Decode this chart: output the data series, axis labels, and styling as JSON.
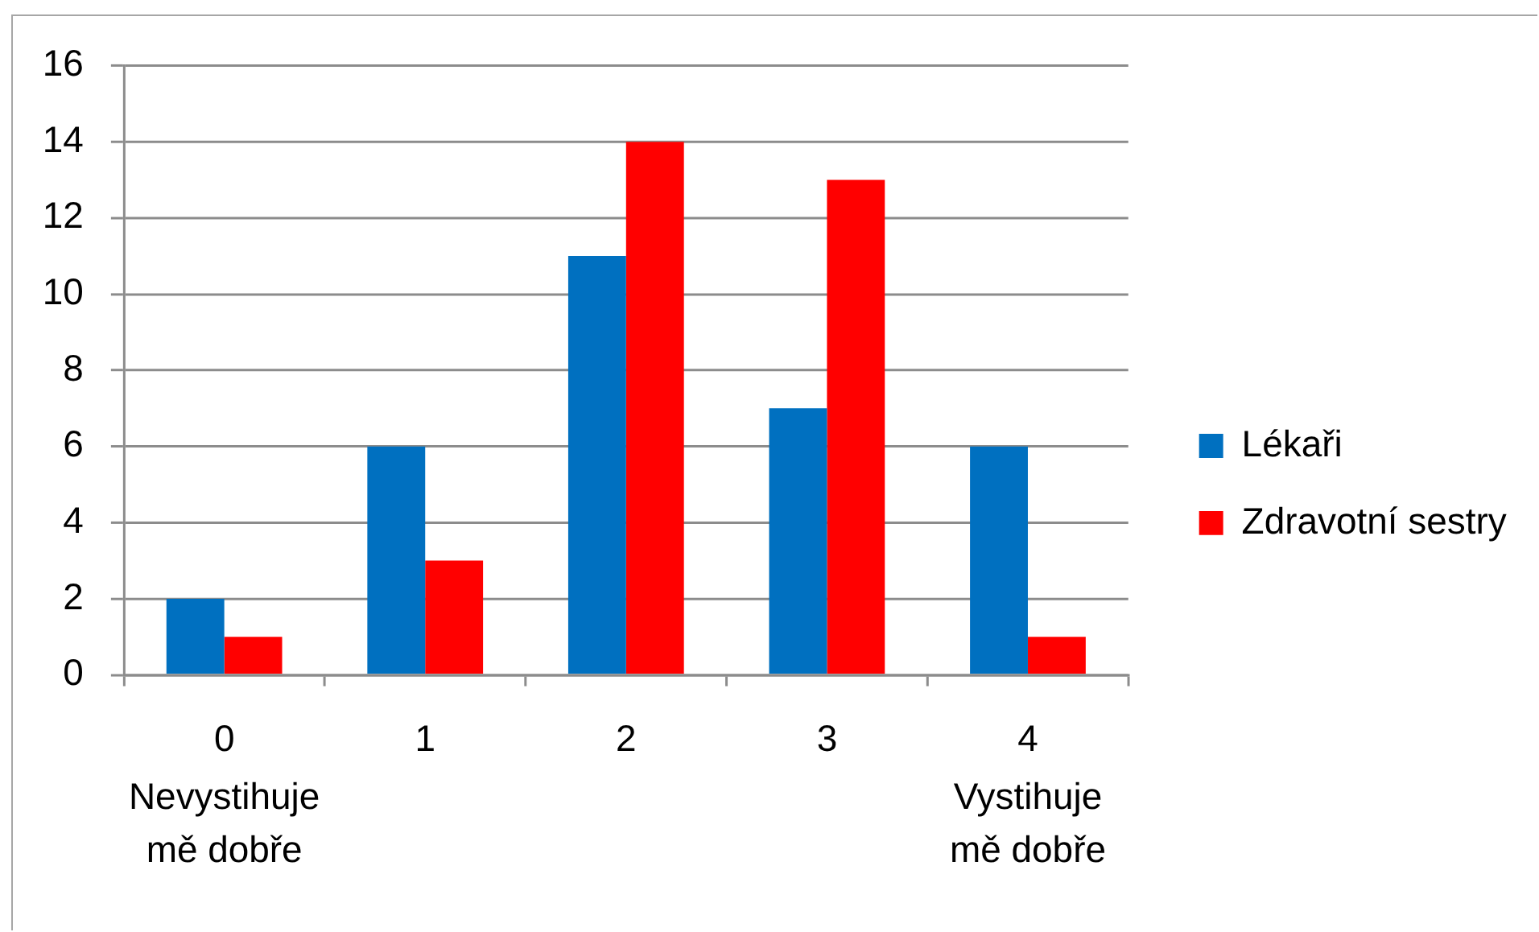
{
  "chart_data": {
    "type": "bar",
    "categories": [
      "0",
      "1",
      "2",
      "3",
      "4"
    ],
    "series": [
      {
        "name": "Lékaři",
        "color": "#0070c0",
        "values": [
          2,
          6,
          11,
          7,
          6
        ]
      },
      {
        "name": "Zdravotní sestry",
        "color": "#ff0000",
        "values": [
          1,
          3,
          14,
          13,
          1
        ]
      }
    ],
    "ylim": [
      0,
      16
    ],
    "yticks": [
      0,
      2,
      4,
      6,
      8,
      10,
      12,
      14,
      16
    ],
    "grid": "y",
    "legend": "right",
    "annotations": [
      "Nevystihuje\nmě dobře",
      "Vystihuje\nmě dobře"
    ]
  }
}
